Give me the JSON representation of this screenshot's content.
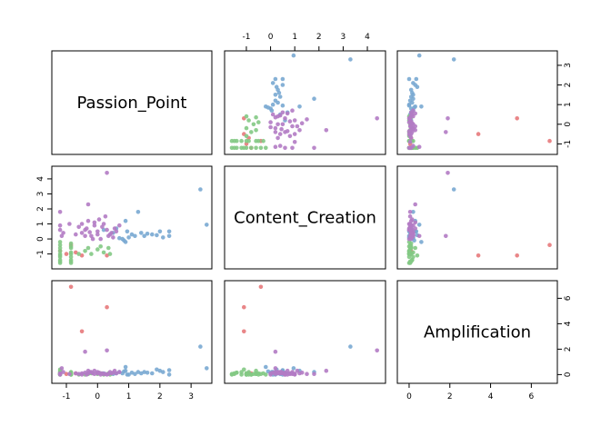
{
  "chart_data": {
    "type": "scatter",
    "layout": "pairs-matrix",
    "variables": [
      "Passion_Point",
      "Content_Creation",
      "Amplification"
    ],
    "ranges": {
      "Passion_Point": [
        -1.35,
        3.55
      ],
      "Content_Creation": [
        -1.75,
        4.6
      ],
      "Amplification": [
        -0.4,
        7.1
      ]
    },
    "axis_ticks": {
      "Passion_Point": {
        "values": [
          -1,
          0,
          1,
          2,
          3
        ],
        "labels": [
          "-1",
          "0",
          "1",
          "2",
          "3"
        ]
      },
      "Content_Creation": {
        "values": [
          -1,
          0,
          1,
          2,
          3,
          4
        ],
        "labels": [
          "-1",
          "0",
          "1",
          "2",
          "3",
          "4"
        ]
      },
      "Amplification": {
        "values": [
          0,
          2,
          4,
          6
        ],
        "labels": [
          "0",
          "2",
          "4",
          "6"
        ]
      }
    },
    "grid": false,
    "legend": "none",
    "colors": {
      "red": "#E7797B",
      "blue": "#79A8D2",
      "green": "#83C984",
      "purple": "#B27BC4"
    },
    "point_order": [
      "Passion_Point",
      "Content_Creation",
      "Amplification"
    ],
    "series": [
      {
        "color": "red",
        "points": [
          [
            -0.85,
            -0.4,
            6.9
          ],
          [
            0.3,
            -1.1,
            5.3
          ],
          [
            -0.5,
            -1.1,
            3.4
          ],
          [
            -1.2,
            -0.8,
            0.1
          ],
          [
            -1.0,
            -1.0,
            0.05
          ],
          [
            -0.7,
            -0.9,
            0.1
          ]
        ]
      },
      {
        "color": "blue",
        "points": [
          [
            3.3,
            3.3,
            2.2
          ],
          [
            3.5,
            0.95,
            0.5
          ],
          [
            0.9,
            1.2,
            0.3
          ],
          [
            1.3,
            1.8,
            0.2
          ],
          [
            0.2,
            0.6,
            0.1
          ],
          [
            2.3,
            0.5,
            0.35
          ],
          [
            1.9,
            0.25,
            0.4
          ],
          [
            1.5,
            0.2,
            0.2
          ],
          [
            1.1,
            0.3,
            0.15
          ],
          [
            0.8,
            0.0,
            0.1
          ],
          [
            0.7,
            0.05,
            0.2
          ],
          [
            1.4,
            0.4,
            0.1
          ],
          [
            2.1,
            0.1,
            0.2
          ],
          [
            0.5,
            0.4,
            0.05
          ],
          [
            0.9,
            -0.2,
            0.6
          ],
          [
            1.6,
            0.35,
            0.15
          ],
          [
            1.0,
            0.1,
            0.0
          ],
          [
            0.6,
            0.7,
            0.1
          ],
          [
            2.0,
            0.5,
            0.3
          ],
          [
            1.2,
            0.2,
            0.05
          ],
          [
            0.85,
            -0.1,
            0.25
          ],
          [
            1.75,
            0.3,
            0.1
          ],
          [
            0.95,
            0.5,
            0.0
          ],
          [
            2.3,
            0.2,
            0.0
          ]
        ]
      },
      {
        "color": "green",
        "points": [
          [
            -1.2,
            -1.5,
            0.05
          ],
          [
            -1.2,
            -1.2,
            0.2
          ],
          [
            -1.2,
            -1.0,
            0.1
          ],
          [
            -1.2,
            -0.8,
            0.0
          ],
          [
            -1.2,
            -0.6,
            0.3
          ],
          [
            -1.2,
            -0.4,
            0.05
          ],
          [
            -1.2,
            -1.4,
            0.15
          ],
          [
            -1.2,
            -0.2,
            0.0
          ],
          [
            -0.85,
            -1.5,
            0.1
          ],
          [
            -0.85,
            -1.2,
            0.0
          ],
          [
            -0.85,
            -0.9,
            0.2
          ],
          [
            -0.85,
            -0.6,
            0.05
          ],
          [
            -0.85,
            -0.3,
            0.1
          ],
          [
            -0.85,
            -1.0,
            0.0
          ],
          [
            -0.85,
            -1.4,
            0.15
          ],
          [
            -0.4,
            -0.8,
            0.0
          ],
          [
            -0.2,
            -1.0,
            0.1
          ],
          [
            0.0,
            -0.7,
            0.05
          ],
          [
            0.2,
            -0.9,
            0.0
          ],
          [
            0.35,
            -0.6,
            0.1
          ],
          [
            -0.6,
            -1.0,
            0.0
          ],
          [
            0.1,
            -0.5,
            0.1
          ],
          [
            -0.3,
            -0.6,
            0.05
          ],
          [
            0.4,
            -1.0,
            0.0
          ],
          [
            -1.2,
            -1.6,
            0.0
          ],
          [
            -0.85,
            -1.6,
            0.05
          ],
          [
            -1.2,
            -1.1,
            0.4
          ],
          [
            -0.85,
            -0.5,
            0.0
          ]
        ]
      },
      {
        "color": "purple",
        "points": [
          [
            0.3,
            4.4,
            1.9
          ],
          [
            -0.3,
            2.3,
            0.3
          ],
          [
            -1.2,
            1.8,
            0.05
          ],
          [
            -0.4,
            0.2,
            1.8
          ],
          [
            -1.1,
            0.4,
            0.2
          ],
          [
            -0.5,
            0.4,
            0.1
          ],
          [
            -0.4,
            0.6,
            0.15
          ],
          [
            -0.2,
            0.2,
            0.2
          ],
          [
            0.0,
            0.5,
            0.1
          ],
          [
            0.2,
            1.0,
            0.05
          ],
          [
            0.4,
            0.3,
            0.2
          ],
          [
            0.6,
            0.5,
            0.1
          ],
          [
            -0.1,
            1.1,
            0.3
          ],
          [
            0.1,
            0.0,
            0.0
          ],
          [
            -0.3,
            1.2,
            0.1
          ],
          [
            0.5,
            0.1,
            0.15
          ],
          [
            0.7,
            0.9,
            0.2
          ],
          [
            -0.6,
            0.8,
            0.05
          ],
          [
            0.3,
            0.6,
            0.0
          ],
          [
            0.0,
            0.3,
            0.2
          ],
          [
            0.15,
            0.8,
            0.1
          ],
          [
            -0.15,
            0.0,
            0.1
          ],
          [
            -0.5,
            1.0,
            0.0
          ],
          [
            0.35,
            0.2,
            0.05
          ],
          [
            -0.7,
            0.3,
            0.1
          ],
          [
            0.55,
            0.7,
            0.3
          ],
          [
            -0.25,
            0.45,
            0.2
          ],
          [
            0.05,
            1.3,
            0.15
          ],
          [
            -1.2,
            0.6,
            0.0
          ],
          [
            -1.2,
            0.9,
            0.1
          ],
          [
            -0.9,
            1.0,
            0.05
          ],
          [
            -1.15,
            0.2,
            0.5
          ],
          [
            0.25,
            1.5,
            0.05
          ],
          [
            -0.35,
            0.7,
            0.0
          ],
          [
            0.45,
            0.4,
            0.1
          ],
          [
            -0.1,
            0.9,
            0.05
          ]
        ]
      }
    ]
  }
}
